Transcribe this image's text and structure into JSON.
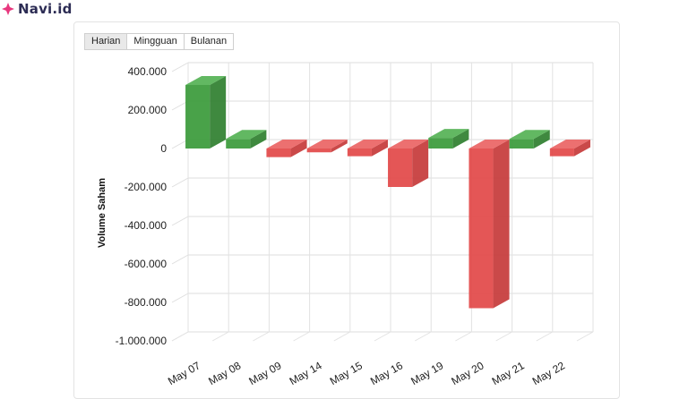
{
  "brand": {
    "name": "Navi.id",
    "icon": "sparkle-icon",
    "color": "#e8377e"
  },
  "tabs": [
    {
      "label": "Harian",
      "active": true
    },
    {
      "label": "Mingguan",
      "active": false
    },
    {
      "label": "Bulanan",
      "active": false
    }
  ],
  "chart_data": {
    "type": "bar",
    "ylabel": "Volume Saham",
    "ylim": [
      -1000000,
      400000
    ],
    "yticks": [
      400000,
      200000,
      0,
      -200000,
      -400000,
      -600000,
      -800000,
      -1000000
    ],
    "ytick_labels": [
      "400.000",
      "200.000",
      "0",
      "-200.000",
      "-400.000",
      "-600.000",
      "-800.000",
      "-1.000.000"
    ],
    "categories": [
      "May 07",
      "May 08",
      "May 09",
      "May 14",
      "May 15",
      "May 16",
      "May 19",
      "May 20",
      "May 21",
      "May 22"
    ],
    "values": [
      330000,
      50000,
      -45000,
      -20000,
      -40000,
      -200000,
      55000,
      -830000,
      50000,
      -40000
    ],
    "positive_color": "#3a9a3a",
    "negative_color": "#e24848",
    "style": "3d-column",
    "grid": true
  }
}
